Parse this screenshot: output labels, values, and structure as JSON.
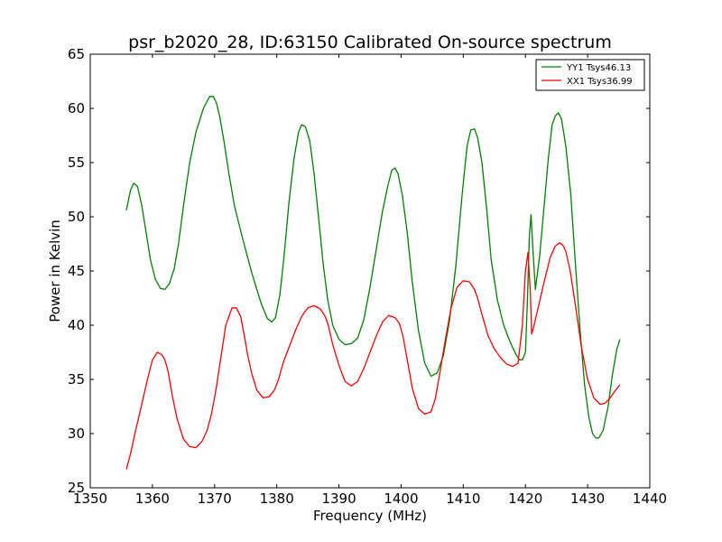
{
  "chart_data": {
    "type": "line",
    "title": "psr_b2020_28, ID:63150 Calibrated On-source spectrum",
    "xlabel": "Frequency (MHz)",
    "ylabel": "Power in Kelvin",
    "xlim": [
      1350,
      1440
    ],
    "ylim": [
      25,
      65
    ],
    "xticks": [
      1350,
      1360,
      1370,
      1380,
      1390,
      1400,
      1410,
      1420,
      1430,
      1440
    ],
    "yticks": [
      25,
      30,
      35,
      40,
      45,
      50,
      55,
      60,
      65
    ],
    "xtick_labels": [
      "1350",
      "1360",
      "1370",
      "1380",
      "1390",
      "1400",
      "1410",
      "1420",
      "1430",
      "1440"
    ],
    "ytick_labels": [
      "25",
      "30",
      "35",
      "40",
      "45",
      "50",
      "55",
      "60",
      "65"
    ],
    "grid": false,
    "legend": {
      "position": "top-right"
    },
    "series": [
      {
        "name": "YY1 Tsys46.13",
        "color": "#008000",
        "x": [
          1355.8,
          1356.5,
          1357.0,
          1357.6,
          1358.3,
          1359.0,
          1359.7,
          1360.5,
          1361.3,
          1362.0,
          1362.7,
          1363.5,
          1364.2,
          1365.0,
          1366.0,
          1367.0,
          1368.2,
          1369.2,
          1369.8,
          1370.3,
          1370.8,
          1371.5,
          1372.3,
          1373.2,
          1374.5,
          1376.0,
          1377.5,
          1378.5,
          1379.2,
          1379.8,
          1380.5,
          1381.2,
          1382.0,
          1382.8,
          1383.5,
          1384.0,
          1384.6,
          1385.3,
          1386.0,
          1386.8,
          1387.5,
          1388.2,
          1389.0,
          1390.0,
          1391.0,
          1392.0,
          1393.0,
          1394.0,
          1395.0,
          1396.0,
          1397.0,
          1397.8,
          1398.5,
          1399.0,
          1399.5,
          1400.2,
          1401.0,
          1401.8,
          1402.8,
          1403.8,
          1404.8,
          1405.8,
          1406.8,
          1407.8,
          1408.8,
          1409.8,
          1410.6,
          1411.2,
          1411.8,
          1412.3,
          1413.0,
          1413.8,
          1414.5,
          1415.5,
          1416.5,
          1417.5,
          1418.3,
          1419.0,
          1419.5,
          1420.0,
          1420.3,
          1420.6,
          1420.9,
          1421.2,
          1421.6,
          1422.3,
          1423.0,
          1423.7,
          1424.3,
          1424.8,
          1425.3,
          1425.8,
          1426.5,
          1427.3,
          1428.0,
          1428.8,
          1429.5,
          1430.2,
          1430.8,
          1431.3,
          1431.8,
          1432.5,
          1433.3,
          1434.0,
          1434.7,
          1435.2
        ],
        "y": [
          50.6,
          52.5,
          53.1,
          52.8,
          51.0,
          48.5,
          46.0,
          44.2,
          43.4,
          43.3,
          43.8,
          45.2,
          47.5,
          51.0,
          55.0,
          57.8,
          60.0,
          61.1,
          61.1,
          60.5,
          59.3,
          57.0,
          54.0,
          51.0,
          48.0,
          44.8,
          42.0,
          40.6,
          40.3,
          40.7,
          42.8,
          46.5,
          51.5,
          55.5,
          57.8,
          58.5,
          58.3,
          57.0,
          54.0,
          49.5,
          45.5,
          42.3,
          40.0,
          38.7,
          38.2,
          38.3,
          38.8,
          40.5,
          43.5,
          47.0,
          50.5,
          52.7,
          54.3,
          54.5,
          54.0,
          52.0,
          48.5,
          44.0,
          39.5,
          36.5,
          35.3,
          35.6,
          37.2,
          40.5,
          45.5,
          52.0,
          56.5,
          58.0,
          58.1,
          57.3,
          55.0,
          50.5,
          46.0,
          42.3,
          40.0,
          38.5,
          37.5,
          36.8,
          36.8,
          37.5,
          42.0,
          48.0,
          50.2,
          47.0,
          43.3,
          46.5,
          51.0,
          55.5,
          58.5,
          59.3,
          59.6,
          59.0,
          56.5,
          52.0,
          46.0,
          39.5,
          34.5,
          31.5,
          30.0,
          29.6,
          29.6,
          30.3,
          32.5,
          35.5,
          37.8,
          38.7
        ]
      },
      {
        "name": "XX1 Tsys36.99",
        "color": "#ff0000",
        "x": [
          1355.8,
          1356.5,
          1357.3,
          1358.2,
          1359.2,
          1360.0,
          1360.8,
          1361.5,
          1362.0,
          1362.5,
          1363.2,
          1364.0,
          1365.0,
          1366.0,
          1367.0,
          1368.0,
          1368.8,
          1369.5,
          1370.2,
          1371.0,
          1371.8,
          1372.8,
          1373.5,
          1374.2,
          1374.8,
          1375.3,
          1376.0,
          1376.8,
          1377.8,
          1378.8,
          1379.6,
          1380.3,
          1381.0,
          1382.0,
          1383.0,
          1384.0,
          1385.0,
          1386.0,
          1387.0,
          1387.8,
          1388.3,
          1389.0,
          1390.0,
          1391.0,
          1392.0,
          1393.0,
          1394.0,
          1395.0,
          1396.0,
          1397.0,
          1398.0,
          1399.0,
          1399.7,
          1400.3,
          1401.0,
          1401.8,
          1402.8,
          1403.8,
          1404.8,
          1405.5,
          1406.2,
          1407.0,
          1408.0,
          1409.0,
          1410.0,
          1411.0,
          1411.8,
          1412.3,
          1413.0,
          1414.0,
          1415.0,
          1416.0,
          1417.0,
          1418.0,
          1418.8,
          1419.5,
          1420.0,
          1420.4,
          1420.8,
          1421.0,
          1421.3,
          1422.0,
          1423.0,
          1424.0,
          1424.8,
          1425.5,
          1426.0,
          1426.5,
          1427.2,
          1428.0,
          1429.0,
          1430.0,
          1431.0,
          1432.0,
          1432.8,
          1433.5,
          1434.5,
          1435.2
        ],
        "y": [
          26.7,
          28.2,
          30.3,
          32.5,
          35.0,
          36.8,
          37.5,
          37.3,
          36.8,
          35.8,
          33.5,
          31.3,
          29.5,
          28.8,
          28.7,
          29.3,
          30.3,
          31.8,
          34.0,
          37.0,
          40.0,
          41.6,
          41.6,
          40.8,
          39.0,
          37.3,
          35.5,
          34.0,
          33.3,
          33.4,
          34.0,
          35.0,
          36.5,
          38.0,
          39.5,
          40.8,
          41.6,
          41.8,
          41.5,
          40.8,
          40.0,
          38.2,
          36.3,
          34.8,
          34.4,
          34.8,
          36.0,
          37.5,
          39.0,
          40.3,
          40.9,
          40.7,
          40.2,
          39.0,
          36.8,
          34.2,
          32.3,
          31.8,
          32.0,
          33.2,
          35.5,
          38.3,
          41.5,
          43.5,
          44.1,
          44.0,
          43.3,
          42.5,
          41.0,
          39.0,
          37.8,
          37.0,
          36.4,
          36.2,
          36.5,
          40.0,
          45.0,
          46.7,
          43.0,
          39.2,
          39.8,
          41.5,
          44.0,
          46.3,
          47.3,
          47.6,
          47.4,
          46.8,
          45.0,
          42.0,
          38.0,
          35.0,
          33.3,
          32.7,
          32.8,
          33.2,
          34.0,
          34.5
        ]
      }
    ]
  }
}
